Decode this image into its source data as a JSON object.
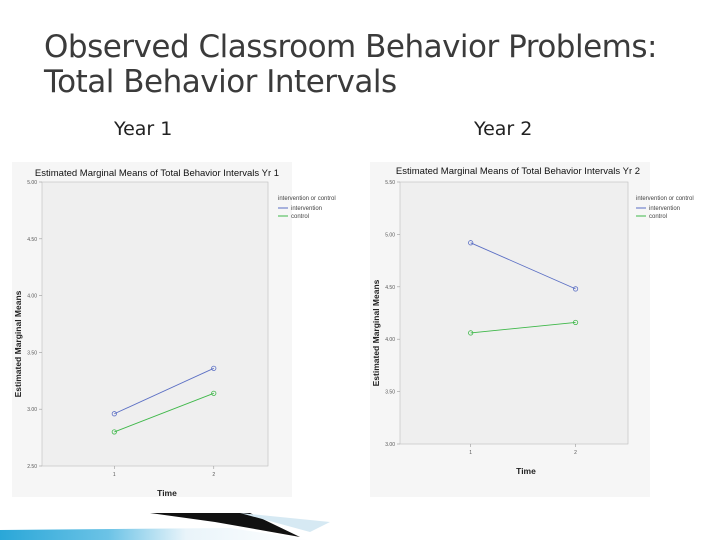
{
  "slide": {
    "title_line1": "Observed Classroom Behavior Problems:",
    "title_line2": "Total Behavior Intervals",
    "year1_label": "Year 1",
    "year2_label": "Year 2"
  },
  "colors": {
    "intervention": "#5b6fc4",
    "control": "#3fb84a",
    "plot_bg": "#efefef",
    "accent_bar": "#2aa7d8"
  },
  "chart_data": [
    {
      "type": "line",
      "title": "Estimated Marginal Means of Total Behavior Intervals Yr 1",
      "xlabel": "Time",
      "ylabel": "Estimated Marginal Means",
      "categories": [
        "1",
        "2"
      ],
      "ylim": [
        2.5,
        5.0
      ],
      "yticks": [
        "2.50",
        "3.00",
        "3.50",
        "4.00",
        "4.50",
        "5.00"
      ],
      "legend_title": "intervention or control",
      "legend_position": "top-right",
      "grid": false,
      "series": [
        {
          "name": "intervention",
          "values": [
            2.96,
            3.36
          ]
        },
        {
          "name": "control",
          "values": [
            2.8,
            3.14
          ]
        }
      ]
    },
    {
      "type": "line",
      "title": "Estimated Marginal Means of Total Behavior Intervals Yr 2",
      "xlabel": "Time",
      "ylabel": "Estimated Marginal Means",
      "categories": [
        "1",
        "2"
      ],
      "ylim": [
        3.0,
        5.5
      ],
      "yticks": [
        "3.00",
        "3.50",
        "4.00",
        "4.50",
        "5.00",
        "5.50"
      ],
      "legend_title": "intervention or control",
      "legend_position": "top-right",
      "grid": false,
      "series": [
        {
          "name": "intervention",
          "values": [
            4.92,
            4.48
          ]
        },
        {
          "name": "control",
          "values": [
            4.06,
            4.16
          ]
        }
      ]
    }
  ]
}
